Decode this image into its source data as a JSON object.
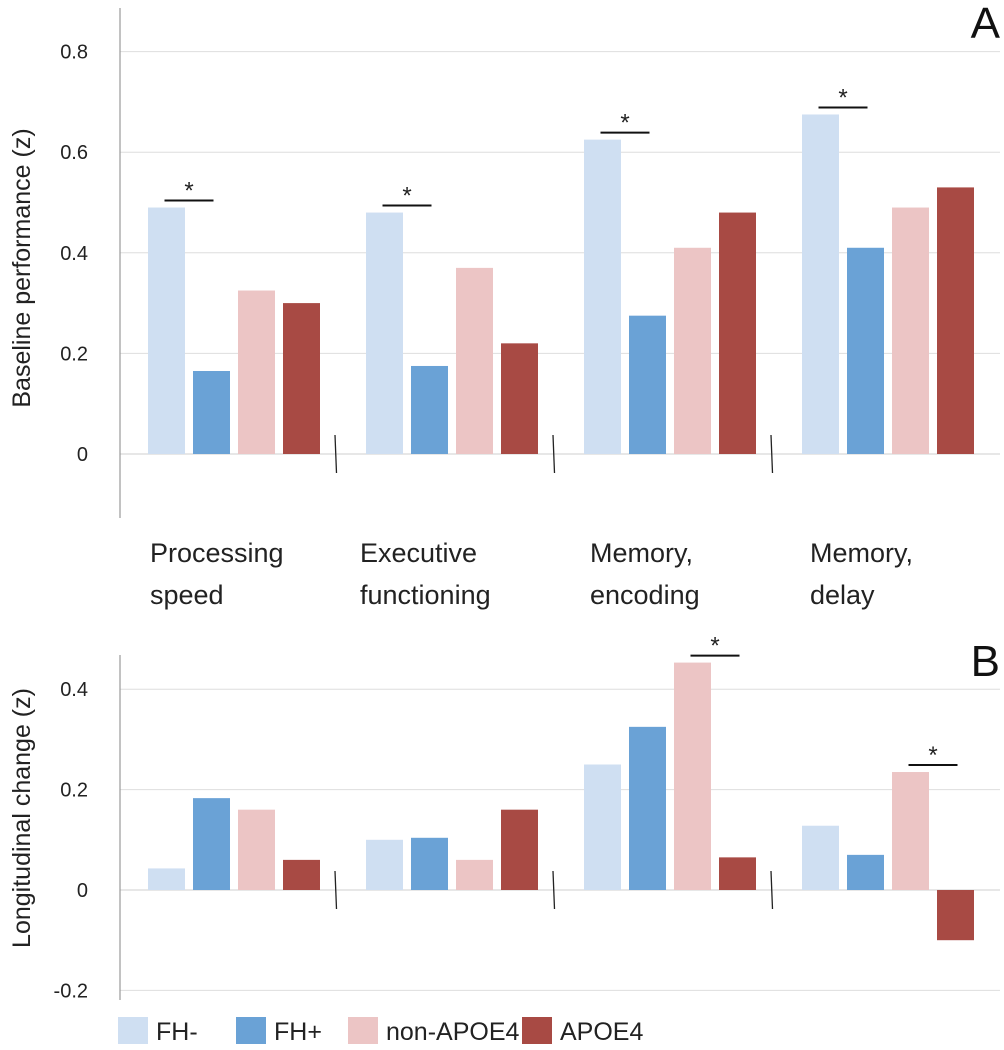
{
  "chart_data": [
    {
      "type": "bar",
      "panel_label": "A",
      "ylabel": "Baseline performance (z)",
      "ylim": [
        -0.1,
        0.9
      ],
      "yticks": [
        0,
        0.2,
        0.4,
        0.6,
        0.8
      ],
      "ytick_labels": [
        "0",
        "0.2",
        "0.4",
        "0.6",
        "0.8"
      ],
      "categories": [
        "Processing speed",
        "Executive functioning",
        "Memory, encoding",
        "Memory, delay"
      ],
      "category_lines": [
        [
          "Processing",
          "speed"
        ],
        [
          "Executive",
          "functioning"
        ],
        [
          "Memory,",
          "encoding"
        ],
        [
          "Memory,",
          "delay"
        ]
      ],
      "series": [
        {
          "name": "FH-",
          "color": "#cfdff2",
          "values": [
            0.49,
            0.48,
            0.625,
            0.675
          ]
        },
        {
          "name": "FH+",
          "color": "#6aa2d6",
          "values": [
            0.165,
            0.175,
            0.275,
            0.41
          ]
        },
        {
          "name": "non-APOE4",
          "color": "#ecc5c5",
          "values": [
            0.325,
            0.37,
            0.41,
            0.49
          ]
        },
        {
          "name": "APOE4",
          "color": "#a84a44",
          "values": [
            0.3,
            0.22,
            0.48,
            0.53
          ]
        }
      ],
      "significance": [
        {
          "category": 0,
          "between": [
            0,
            1
          ],
          "label": "*"
        },
        {
          "category": 1,
          "between": [
            0,
            1
          ],
          "label": "*"
        },
        {
          "category": 2,
          "between": [
            0,
            1
          ],
          "label": "*"
        },
        {
          "category": 3,
          "between": [
            0,
            1
          ],
          "label": "*"
        }
      ]
    },
    {
      "type": "bar",
      "panel_label": "B",
      "ylabel": "Longitudinal change (z)",
      "ylim": [
        -0.2,
        0.46
      ],
      "yticks": [
        -0.2,
        0,
        0.2,
        0.4
      ],
      "ytick_labels": [
        "-0.2",
        "0",
        "0.2",
        "0.4"
      ],
      "categories": [
        "Processing speed",
        "Executive functioning",
        "Memory, encoding",
        "Memory, delay"
      ],
      "series": [
        {
          "name": "FH-",
          "color": "#cfdff2",
          "values": [
            0.043,
            0.1,
            0.25,
            0.128
          ]
        },
        {
          "name": "FH+",
          "color": "#6aa2d6",
          "values": [
            0.183,
            0.104,
            0.325,
            0.07
          ]
        },
        {
          "name": "non-APOE4",
          "color": "#ecc5c5",
          "values": [
            0.16,
            0.06,
            0.453,
            0.235
          ]
        },
        {
          "name": "APOE4",
          "color": "#a84a44",
          "values": [
            0.06,
            0.16,
            0.065,
            -0.1
          ]
        }
      ],
      "significance": [
        {
          "category": 2,
          "between": [
            2,
            3
          ],
          "label": "*"
        },
        {
          "category": 3,
          "between": [
            2,
            3
          ],
          "label": "*"
        }
      ]
    }
  ],
  "legend": {
    "items": [
      {
        "name": "FH-",
        "color": "#cfdff2"
      },
      {
        "name": "FH+",
        "color": "#6aa2d6"
      },
      {
        "name": "non-APOE4",
        "color": "#ecc5c5"
      },
      {
        "name": "APOE4",
        "color": "#a84a44"
      }
    ]
  }
}
